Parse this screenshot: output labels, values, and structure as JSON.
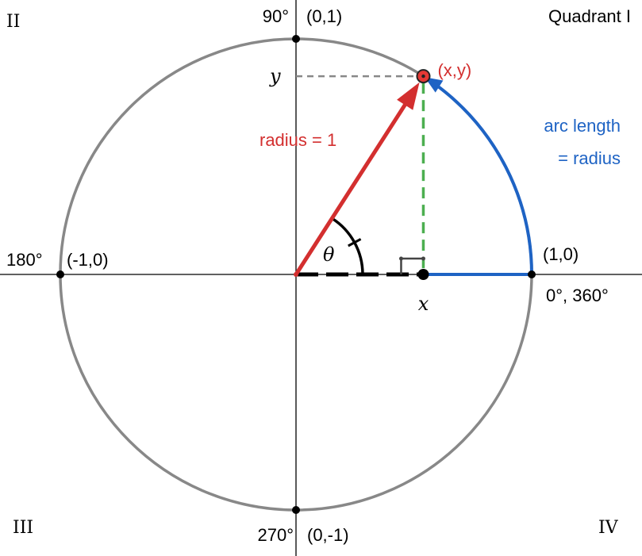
{
  "quadrants": {
    "q1": "Quadrant I",
    "q2": "II",
    "q3": "III",
    "q4": "IV"
  },
  "angles": {
    "deg90": "90°",
    "deg180": "180°",
    "deg270": "270°",
    "deg0_360": "0°, 360°"
  },
  "coords": {
    "top": "(0,1)",
    "left": "(-1,0)",
    "bottom": "(0,-1)",
    "right": "(1,0)",
    "point": "(x,y)"
  },
  "labels": {
    "radius": "radius = 1",
    "arc_line1": "arc length",
    "arc_line2": "= radius",
    "theta": "θ",
    "x": "x",
    "y": "y"
  },
  "colors": {
    "circle": "#888888",
    "axes": "#000000",
    "radius": "#d32f2f",
    "arc": "#1e63c4",
    "vertical_guide": "#4caf50",
    "horizontal_guide": "#888888",
    "point_fill": "#e53935"
  },
  "diagram": {
    "theta_radians": 1.0
  }
}
